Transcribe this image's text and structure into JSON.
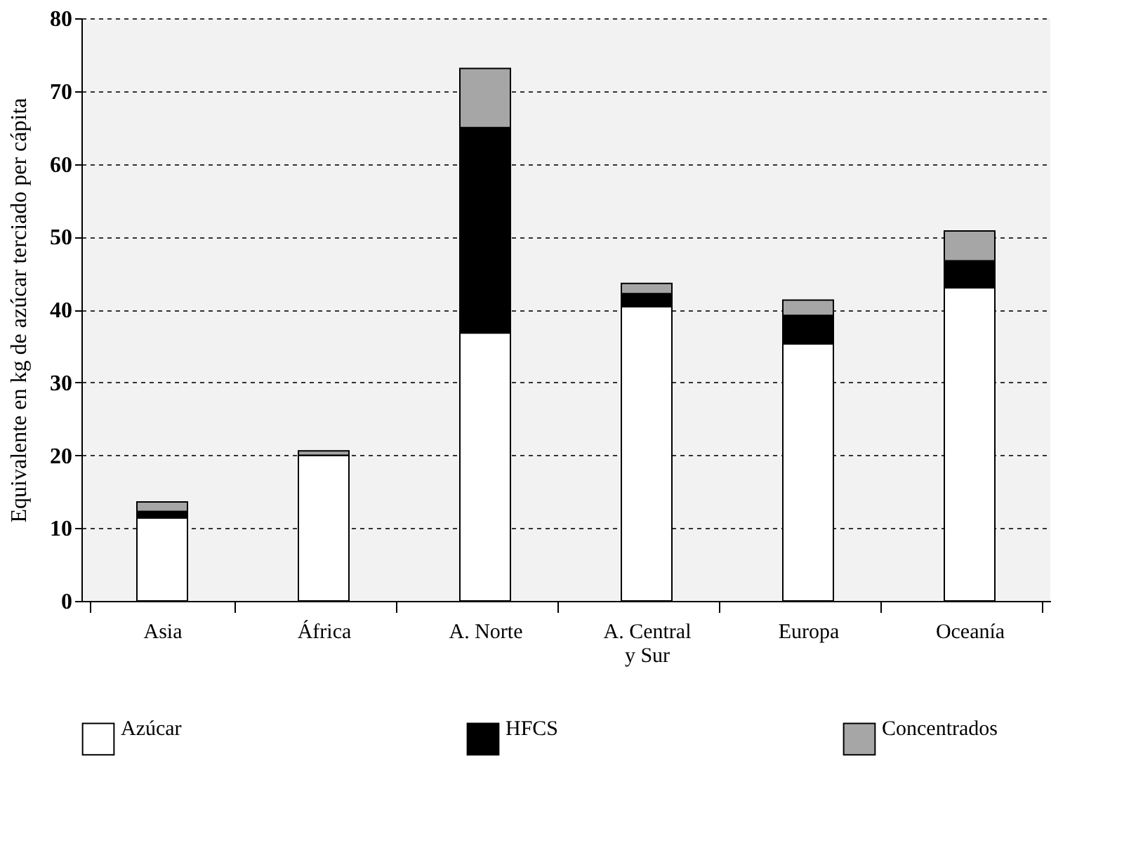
{
  "chart_data": {
    "type": "bar",
    "stacked": true,
    "ylabel": "Equivalente en kg de azúcar terciado per cápita",
    "categories": [
      "Asia",
      "África",
      "A. Norte",
      "A. Central\ny Sur",
      "Europa",
      "Oceanía"
    ],
    "series": [
      {
        "name": "Azúcar",
        "color": "#ffffff",
        "values": [
          11.4,
          20.0,
          36.8,
          40.4,
          35.3,
          43.0
        ]
      },
      {
        "name": "HFCS",
        "color": "#000000",
        "values": [
          0.9,
          0,
          28.2,
          1.8,
          3.9,
          3.7
        ]
      },
      {
        "name": "Concentrados",
        "color": "#a6a6a6",
        "values": [
          1.3,
          0.6,
          8.1,
          1.4,
          2.1,
          4.1
        ]
      }
    ],
    "ylim": [
      0,
      80
    ],
    "yticks": [
      0,
      10,
      20,
      30,
      40,
      50,
      60,
      70,
      80
    ],
    "grid": "y",
    "legend": "bottom"
  }
}
